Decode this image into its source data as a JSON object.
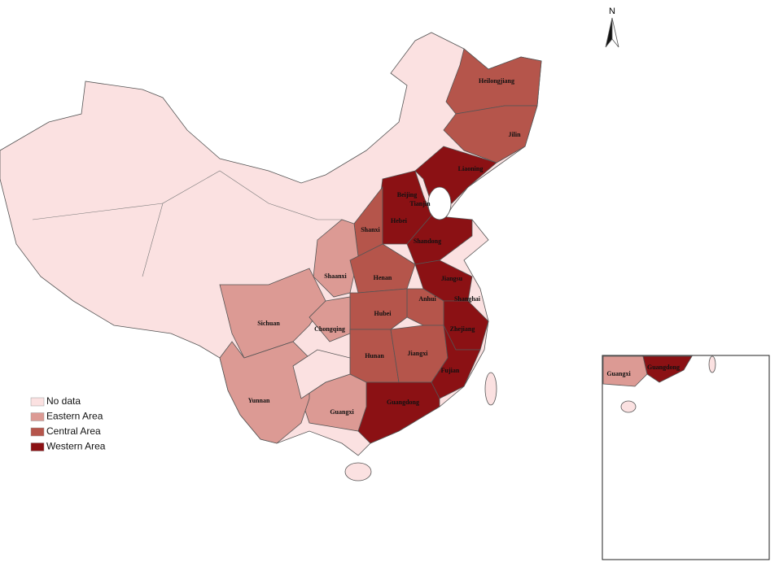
{
  "north_arrow": "N",
  "legend": {
    "items": [
      {
        "label": "No data",
        "color": "#fbe1e1"
      },
      {
        "label": "Eastern Area",
        "color": "#dc9a94"
      },
      {
        "label": "Central Area",
        "color": "#b5554b"
      },
      {
        "label": "Western Area",
        "color": "#8b1114"
      }
    ]
  },
  "provinces": [
    "Heilongjiang",
    "Jilin",
    "Liaoning",
    "Beijing",
    "Tianjin",
    "Hebei",
    "Shanxi",
    "Shandong",
    "Shaanxi",
    "Henan",
    "Jiangsu",
    "Anhui",
    "Shanghai",
    "Sichuan",
    "Chongqing",
    "Hubei",
    "Zhejiang",
    "Hunan",
    "Jiangxi",
    "Yunnan",
    "Fujian",
    "Guangxi",
    "Guangdong"
  ],
  "inset": {
    "labels": [
      "Guangxi",
      "Guangdong"
    ]
  }
}
